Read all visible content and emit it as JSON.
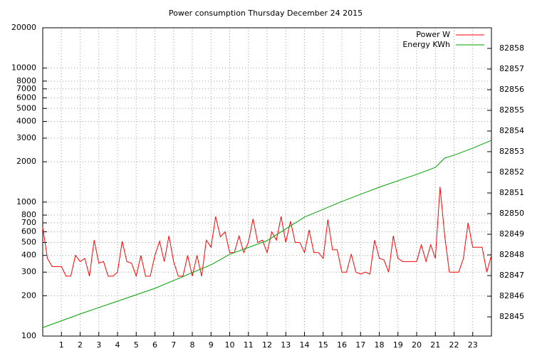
{
  "chart_data": {
    "type": "line",
    "title": "Power consumption Thursday December 24 2015",
    "xlim": [
      0,
      24
    ],
    "xticks": [
      1,
      2,
      3,
      4,
      5,
      6,
      7,
      8,
      9,
      10,
      11,
      12,
      13,
      14,
      15,
      16,
      17,
      18,
      19,
      20,
      21,
      22,
      23
    ],
    "ylim": [
      100,
      20000
    ],
    "yscale": "log",
    "yticks": [
      100,
      200,
      300,
      400,
      500,
      600,
      700,
      800,
      1000,
      2000,
      3000,
      4000,
      5000,
      6000,
      7000,
      8000,
      10000,
      20000
    ],
    "y2lim": [
      82844.07,
      82859
    ],
    "y2ticks": [
      82845,
      82846,
      82847,
      82848,
      82849,
      82850,
      82851,
      82852,
      82853,
      82854,
      82855,
      82856,
      82857,
      82858
    ],
    "grid": true,
    "legend": "top-right",
    "series": [
      {
        "name": "Power W",
        "color": "#ff0000",
        "x": [
          0,
          0.25,
          0.5,
          0.75,
          1,
          1.25,
          1.5,
          1.75,
          2,
          2.25,
          2.5,
          2.75,
          3,
          3.25,
          3.5,
          3.75,
          4,
          4.25,
          4.5,
          4.75,
          5,
          5.25,
          5.5,
          5.75,
          6,
          6.25,
          6.5,
          6.75,
          7,
          7.25,
          7.5,
          7.75,
          8,
          8.25,
          8.5,
          8.75,
          9,
          9.25,
          9.5,
          9.75,
          10,
          10.25,
          10.5,
          10.75,
          11,
          11.25,
          11.5,
          11.75,
          12,
          12.25,
          12.5,
          12.75,
          13,
          13.25,
          13.5,
          13.75,
          14,
          14.25,
          14.5,
          14.75,
          15,
          15.25,
          15.5,
          15.75,
          16,
          16.25,
          16.5,
          16.75,
          17,
          17.25,
          17.5,
          17.75,
          18,
          18.25,
          18.5,
          18.75,
          19,
          19.25,
          19.5,
          19.75,
          20,
          20.25,
          20.5,
          20.75,
          21,
          21.25,
          21.5,
          21.75,
          22,
          22.25,
          22.5,
          22.75,
          23,
          23.25,
          23.5,
          23.75,
          24
        ],
        "values": [
          650,
          380,
          330,
          330,
          330,
          280,
          280,
          400,
          360,
          380,
          280,
          520,
          350,
          360,
          280,
          280,
          300,
          510,
          360,
          350,
          280,
          400,
          280,
          280,
          400,
          510,
          360,
          560,
          360,
          280,
          280,
          400,
          280,
          400,
          280,
          520,
          460,
          780,
          550,
          600,
          420,
          420,
          560,
          420,
          500,
          750,
          500,
          520,
          420,
          600,
          520,
          780,
          500,
          720,
          500,
          500,
          420,
          620,
          420,
          420,
          380,
          740,
          440,
          440,
          300,
          300,
          410,
          300,
          290,
          300,
          290,
          520,
          380,
          370,
          300,
          560,
          380,
          360,
          360,
          360,
          360,
          480,
          360,
          480,
          380,
          1300,
          560,
          300,
          300,
          300,
          380,
          700,
          460,
          460,
          460,
          300,
          400
        ]
      },
      {
        "name": "Energy KWh",
        "color": "#00a000",
        "axis": "y2",
        "x": [
          0,
          2,
          4,
          6,
          8,
          9,
          10,
          12,
          14,
          16,
          18,
          20,
          21,
          21.5,
          22,
          23,
          24
        ],
        "values": [
          82844.48,
          82845.14,
          82845.76,
          82846.38,
          82847.14,
          82847.52,
          82848.03,
          82848.69,
          82849.83,
          82850.59,
          82851.28,
          82851.9,
          82852.24,
          82852.69,
          82852.83,
          82853.17,
          82853.55
        ]
      }
    ]
  }
}
